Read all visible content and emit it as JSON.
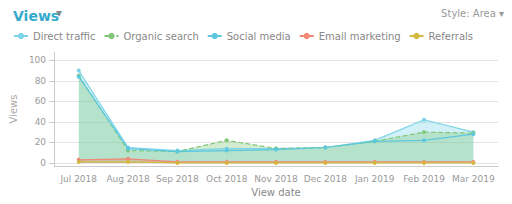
{
  "chart_data": {
    "type": "line",
    "title": "Views",
    "annotations": [
      "▾",
      "Style:",
      "Area",
      "▾"
    ],
    "categories": [
      "Jul 2018",
      "Aug 2018",
      "Sep 2018",
      "Oct 2018",
      "Nov 2018",
      "Dec 2018",
      "Jan 2019",
      "Feb 2019",
      "Mar 2019"
    ],
    "series": [
      {
        "name": "Direct traffic",
        "type": "area",
        "color": "#7dd3e8",
        "marker": "circle",
        "line_style": "solid",
        "values": [
          90,
          15,
          12,
          14,
          14,
          15,
          22,
          42,
          30
        ]
      },
      {
        "name": "Organic search",
        "type": "area",
        "color": "#80c878",
        "marker": "circle",
        "line_style": "dashed",
        "values": [
          85,
          12,
          11,
          22,
          14,
          15,
          21,
          30,
          29
        ]
      },
      {
        "name": "Social media",
        "type": "line",
        "color": "#5bc8e0",
        "marker": "circle",
        "line_style": "solid",
        "values": [
          84,
          14,
          11,
          12,
          13,
          15,
          21,
          22,
          28
        ]
      },
      {
        "name": "Email marketing",
        "type": "area",
        "color": "#f08878",
        "marker": "circle",
        "line_style": "solid",
        "values": [
          3,
          4,
          1,
          1,
          1,
          1,
          1,
          1,
          1
        ]
      },
      {
        "name": "Referrals",
        "type": "line",
        "color": "#d4b840",
        "marker": "circle",
        "line_style": "solid",
        "values": [
          1,
          1,
          0,
          0,
          0,
          0,
          0,
          0,
          0
        ]
      }
    ],
    "xlabel": "View date",
    "ylabel": "Views",
    "ylim": [
      -3,
      108
    ],
    "yticks": [
      0,
      20,
      40,
      60,
      80,
      100
    ],
    "grid": true,
    "legend": "upper left"
  }
}
